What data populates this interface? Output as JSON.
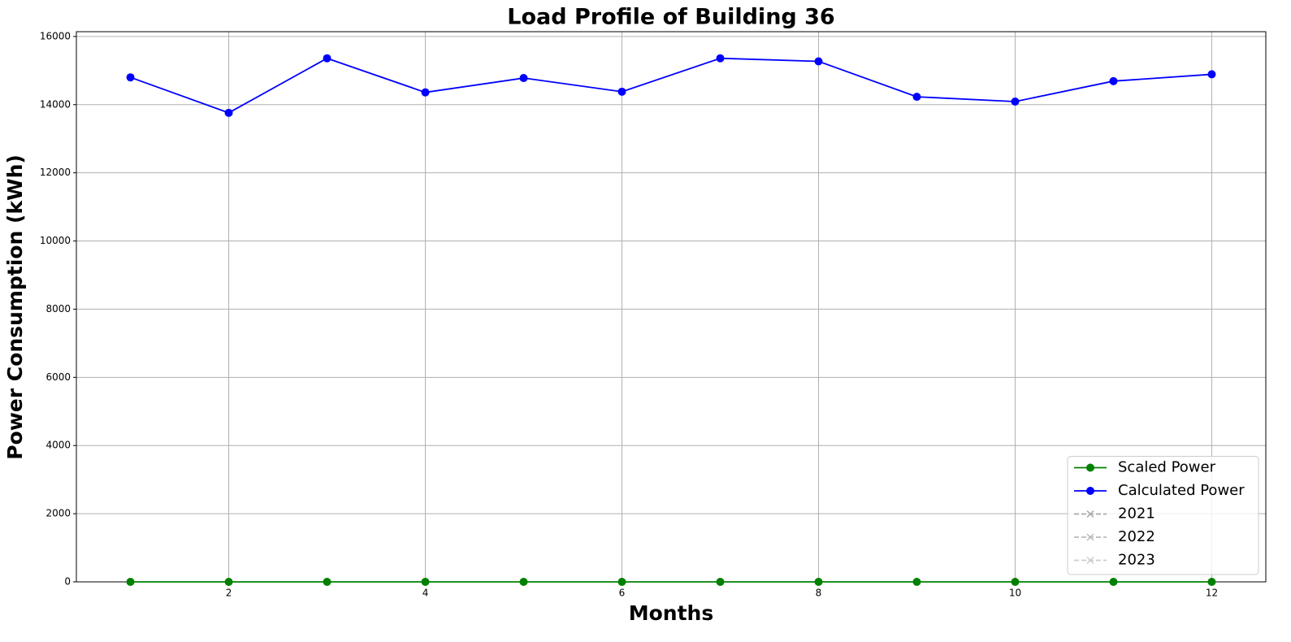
{
  "chart_data": {
    "type": "line",
    "title": "Load Profile of Building 36",
    "x_label": "Months",
    "y_label": "Power Consumption (kWh)",
    "x": [
      1,
      2,
      3,
      4,
      5,
      6,
      7,
      8,
      9,
      10,
      11,
      12
    ],
    "series": [
      {
        "name": "Scaled Power",
        "color": "#008000",
        "linestyle": "-",
        "marker": "o",
        "values": [
          0,
          0,
          0,
          0,
          0,
          0,
          0,
          0,
          0,
          0,
          0,
          0
        ]
      },
      {
        "name": "Calculated Power",
        "color": "#0000ff",
        "linestyle": "-",
        "marker": "o",
        "values": [
          14800,
          13760,
          15360,
          14360,
          14780,
          14380,
          15360,
          15270,
          14230,
          14090,
          14690,
          14890
        ]
      },
      {
        "name": "2021",
        "color": "#aaaaaa",
        "linestyle": "--",
        "marker": "x",
        "values": [
          null,
          null,
          null,
          null,
          null,
          null,
          null,
          null,
          null,
          null,
          null,
          null
        ]
      },
      {
        "name": "2022",
        "color": "#bbbbbb",
        "linestyle": "--",
        "marker": "x",
        "values": [
          null,
          null,
          null,
          null,
          null,
          null,
          null,
          null,
          null,
          null,
          null,
          null
        ]
      },
      {
        "name": "2023",
        "color": "#cccccc",
        "linestyle": "--",
        "marker": "x",
        "values": [
          null,
          null,
          null,
          null,
          null,
          null,
          null,
          null,
          null,
          null,
          null,
          null
        ]
      }
    ],
    "xlim": [
      0.45,
      12.55
    ],
    "xticks": [
      2,
      4,
      6,
      8,
      10,
      12
    ],
    "ylim": [
      0,
      16140
    ],
    "yticks": [
      0,
      2000,
      4000,
      6000,
      8000,
      10000,
      12000,
      14000,
      16000
    ],
    "grid": true,
    "legend": "lower right"
  }
}
